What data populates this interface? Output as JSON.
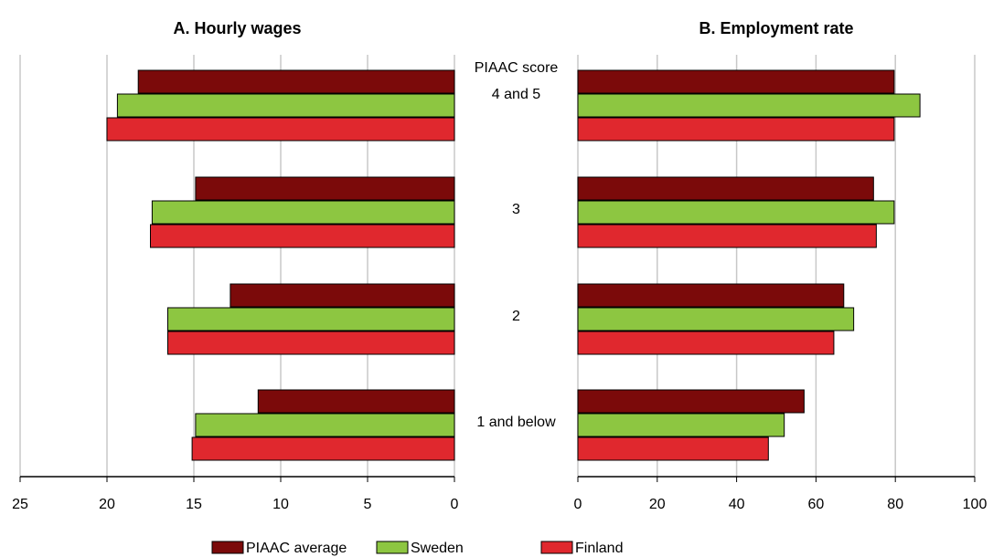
{
  "chart_data": [
    {
      "type": "bar",
      "orientation": "horizontal",
      "title": "A. Hourly wages",
      "category_title": "PIAAC score",
      "categories": [
        "4 and 5",
        "3",
        "2",
        "1 and below"
      ],
      "series": [
        {
          "name": "PIAAC average",
          "color": "#7b0a0a",
          "values": [
            18.2,
            14.9,
            12.9,
            11.3
          ]
        },
        {
          "name": "Sweden",
          "color": "#8dc641",
          "values": [
            19.4,
            17.4,
            16.5,
            14.9
          ]
        },
        {
          "name": "Finland",
          "color": "#e0282e",
          "values": [
            20,
            17.5,
            16.5,
            15.1
          ]
        }
      ],
      "xlim": [
        25,
        0
      ],
      "xticks": [
        25,
        20,
        15,
        10,
        5,
        0
      ],
      "grid": true
    },
    {
      "type": "bar",
      "orientation": "horizontal",
      "title": "B. Employment rate",
      "categories": [
        "4 and 5",
        "3",
        "2",
        "1 and below"
      ],
      "series": [
        {
          "name": "PIAAC average",
          "color": "#7b0a0a",
          "values": [
            79.7,
            74.5,
            67,
            57
          ]
        },
        {
          "name": "Sweden",
          "color": "#8dc641",
          "values": [
            86.2,
            79.7,
            69.5,
            52
          ]
        },
        {
          "name": "Finland",
          "color": "#e0282e",
          "values": [
            79.7,
            75.2,
            64.5,
            48
          ]
        }
      ],
      "xlim": [
        0,
        100
      ],
      "xticks": [
        0,
        20,
        40,
        60,
        80,
        100
      ],
      "grid": true
    }
  ]
}
